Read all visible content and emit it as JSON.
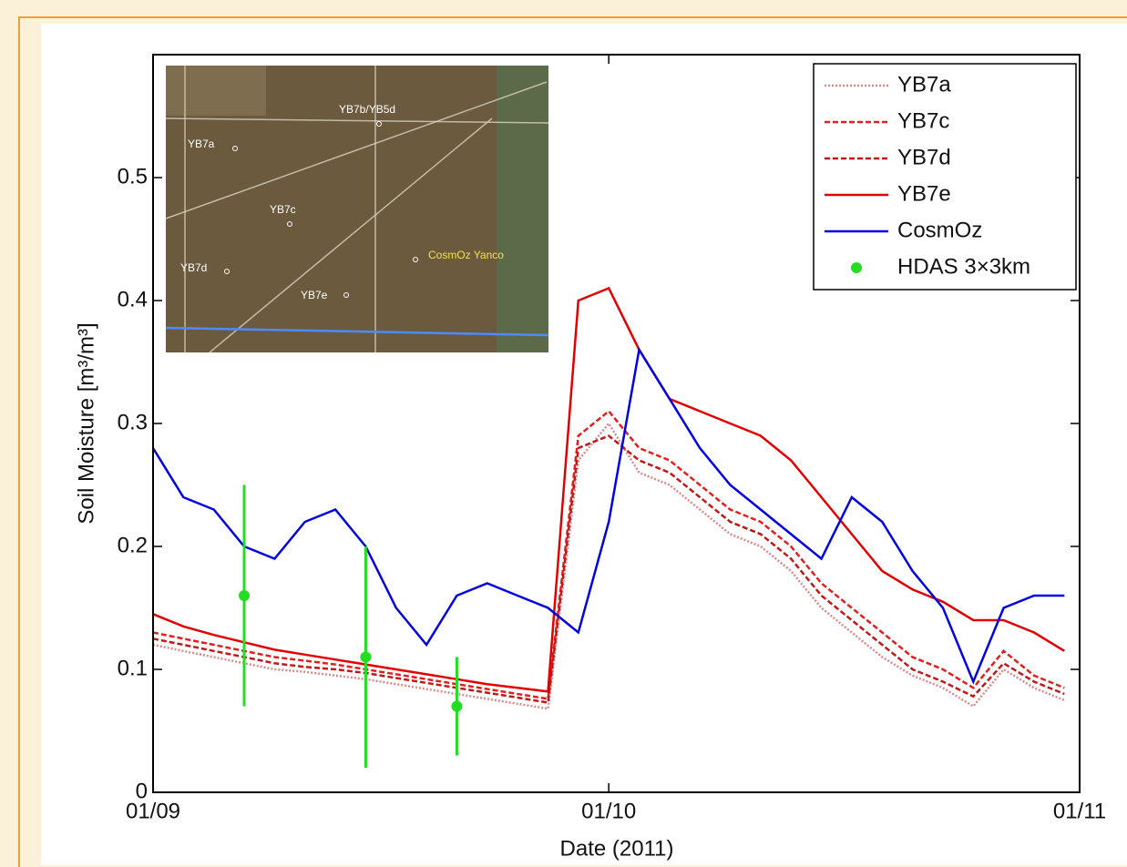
{
  "chart_data": {
    "type": "line",
    "xlabel": "Date (2011)",
    "ylabel": "Soil Moisture [m³/m³]",
    "xlim": [
      "2011-09-01",
      "2011-11-01"
    ],
    "xticks": [
      {
        "value": "2011-09-01",
        "label": "01/09"
      },
      {
        "value": "2011-10-01",
        "label": "01/10"
      },
      {
        "value": "2011-11-01",
        "label": "01/11"
      }
    ],
    "ylim": [
      0,
      0.6
    ],
    "yticks": [
      0,
      0.1,
      0.2,
      0.3,
      0.4,
      0.5
    ],
    "legend": "top-right",
    "x": [
      "2011-09-01",
      "2011-09-03",
      "2011-09-05",
      "2011-09-07",
      "2011-09-09",
      "2011-09-11",
      "2011-09-13",
      "2011-09-15",
      "2011-09-17",
      "2011-09-19",
      "2011-09-21",
      "2011-09-23",
      "2011-09-25",
      "2011-09-27",
      "2011-09-29",
      "2011-10-01",
      "2011-10-03",
      "2011-10-05",
      "2011-10-07",
      "2011-10-09",
      "2011-10-11",
      "2011-10-13",
      "2011-10-15",
      "2011-10-17",
      "2011-10-19",
      "2011-10-21",
      "2011-10-23",
      "2011-10-25",
      "2011-10-27",
      "2011-10-29",
      "2011-10-31"
    ],
    "series": [
      {
        "name": "YB7a",
        "color": "#d88a8a",
        "linestyle": "dotted",
        "values": [
          0.12,
          0.115,
          0.11,
          0.105,
          0.1,
          0.098,
          0.095,
          0.092,
          0.088,
          0.084,
          0.08,
          0.076,
          0.072,
          0.068,
          0.27,
          0.3,
          0.26,
          0.25,
          0.23,
          0.21,
          0.2,
          0.18,
          0.15,
          0.13,
          0.11,
          0.095,
          0.085,
          0.07,
          0.1,
          0.085,
          0.075
        ]
      },
      {
        "name": "YB7c",
        "color": "#e02020",
        "linestyle": "dashed",
        "values": [
          0.13,
          0.125,
          0.12,
          0.115,
          0.11,
          0.107,
          0.104,
          0.1,
          0.096,
          0.092,
          0.088,
          0.084,
          0.08,
          0.076,
          0.29,
          0.31,
          0.28,
          0.27,
          0.25,
          0.23,
          0.22,
          0.2,
          0.17,
          0.15,
          0.13,
          0.11,
          0.1,
          0.085,
          0.115,
          0.095,
          0.085
        ]
      },
      {
        "name": "YB7d",
        "color": "#c01818",
        "linestyle": "dashed",
        "values": [
          0.125,
          0.12,
          0.115,
          0.11,
          0.105,
          0.102,
          0.1,
          0.097,
          0.093,
          0.089,
          0.085,
          0.081,
          0.077,
          0.073,
          0.28,
          0.29,
          0.27,
          0.26,
          0.24,
          0.22,
          0.21,
          0.19,
          0.16,
          0.14,
          0.12,
          0.1,
          0.09,
          0.078,
          0.105,
          0.09,
          0.08
        ]
      },
      {
        "name": "YB7e",
        "color": "#e00000",
        "linestyle": "solid",
        "values": [
          0.145,
          0.135,
          0.128,
          0.122,
          0.116,
          0.112,
          0.108,
          0.104,
          0.1,
          0.096,
          0.092,
          0.088,
          0.085,
          0.082,
          0.4,
          0.41,
          0.36,
          0.32,
          0.31,
          0.3,
          0.29,
          0.27,
          0.24,
          0.21,
          0.18,
          0.165,
          0.155,
          0.14,
          0.14,
          0.13,
          0.115
        ]
      },
      {
        "name": "CosmOz",
        "color": "#0000e0",
        "linestyle": "solid",
        "values": [
          0.28,
          0.24,
          0.23,
          0.2,
          0.19,
          0.22,
          0.23,
          0.2,
          0.15,
          0.12,
          0.16,
          0.17,
          0.16,
          0.15,
          0.13,
          0.22,
          0.36,
          0.32,
          0.28,
          0.25,
          0.23,
          0.21,
          0.19,
          0.24,
          0.22,
          0.18,
          0.15,
          0.09,
          0.15,
          0.16,
          0.16
        ]
      },
      {
        "name": "HDAS 3×3km",
        "color": "#22dd22",
        "linestyle": "none",
        "x": [
          "2011-09-07",
          "2011-09-15",
          "2011-09-21"
        ],
        "values": [
          0.16,
          0.11,
          0.07
        ],
        "errors": [
          0.09,
          0.09,
          0.04
        ]
      }
    ]
  },
  "inset": {
    "labels": [
      "YB7b/YB5d",
      "YB7a",
      "YB7c",
      "YB7d",
      "YB7e",
      "CosmOz Yanco"
    ]
  }
}
